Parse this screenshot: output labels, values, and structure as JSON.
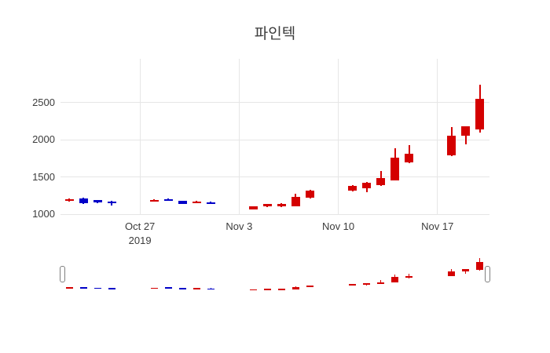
{
  "chart_data": {
    "type": "candlestick",
    "title": "파인텍",
    "legend": "none",
    "grid": "on",
    "colors": {
      "increasing": "#d40000",
      "decreasing": "#0000c8",
      "gridline": "#e6e6e6",
      "text": "#3c3c3c",
      "handle_border": "#7f7f7f",
      "background": "#ffffff"
    },
    "y_axis": {
      "range": [
        1000,
        3090
      ],
      "ticks": [
        {
          "value": 1000,
          "label": "1000"
        },
        {
          "value": 1500,
          "label": "1500"
        },
        {
          "value": 2000,
          "label": "2000"
        },
        {
          "value": 2500,
          "label": "2500"
        }
      ]
    },
    "x_axis": {
      "ticks": [
        {
          "day": 5,
          "label": "Oct 27",
          "sublabel": "2019"
        },
        {
          "day": 12,
          "label": "Nov 3",
          "sublabel": ""
        },
        {
          "day": 19,
          "label": "Nov 10",
          "sublabel": ""
        },
        {
          "day": 26,
          "label": "Nov 17",
          "sublabel": ""
        }
      ]
    },
    "rangeslider": {
      "enabled": true,
      "selected_range": "full"
    },
    "candles": [
      {
        "date": "2019-10-22",
        "d": 0,
        "open": 1175,
        "high": 1215,
        "low": 1170,
        "close": 1205
      },
      {
        "date": "2019-10-23",
        "d": 1,
        "open": 1215,
        "high": 1225,
        "low": 1140,
        "close": 1150
      },
      {
        "date": "2019-10-24",
        "d": 2,
        "open": 1185,
        "high": 1195,
        "low": 1150,
        "close": 1160
      },
      {
        "date": "2019-10-25",
        "d": 3,
        "open": 1170,
        "high": 1175,
        "low": 1120,
        "close": 1150
      },
      {
        "date": "2019-10-28",
        "d": 6,
        "open": 1170,
        "high": 1200,
        "low": 1165,
        "close": 1195
      },
      {
        "date": "2019-10-29",
        "d": 7,
        "open": 1205,
        "high": 1210,
        "low": 1175,
        "close": 1180
      },
      {
        "date": "2019-10-30",
        "d": 8,
        "open": 1175,
        "high": 1180,
        "low": 1135,
        "close": 1140
      },
      {
        "date": "2019-10-31",
        "d": 9,
        "open": 1150,
        "high": 1175,
        "low": 1145,
        "close": 1170
      },
      {
        "date": "2019-11-01",
        "d": 10,
        "open": 1160,
        "high": 1165,
        "low": 1135,
        "close": 1140
      },
      {
        "date": "2019-11-04",
        "d": 13,
        "open": 1065,
        "high": 1110,
        "low": 1060,
        "close": 1105
      },
      {
        "date": "2019-11-05",
        "d": 14,
        "open": 1105,
        "high": 1140,
        "low": 1100,
        "close": 1135
      },
      {
        "date": "2019-11-06",
        "d": 15,
        "open": 1105,
        "high": 1145,
        "low": 1095,
        "close": 1135
      },
      {
        "date": "2019-11-07",
        "d": 16,
        "open": 1110,
        "high": 1270,
        "low": 1105,
        "close": 1235
      },
      {
        "date": "2019-11-08",
        "d": 17,
        "open": 1220,
        "high": 1325,
        "low": 1210,
        "close": 1315
      },
      {
        "date": "2019-11-11",
        "d": 20,
        "open": 1315,
        "high": 1395,
        "low": 1305,
        "close": 1385
      },
      {
        "date": "2019-11-12",
        "d": 21,
        "open": 1350,
        "high": 1430,
        "low": 1295,
        "close": 1425
      },
      {
        "date": "2019-11-13",
        "d": 22,
        "open": 1390,
        "high": 1580,
        "low": 1385,
        "close": 1490
      },
      {
        "date": "2019-11-14",
        "d": 23,
        "open": 1455,
        "high": 1885,
        "low": 1450,
        "close": 1765
      },
      {
        "date": "2019-11-15",
        "d": 24,
        "open": 1700,
        "high": 1925,
        "low": 1690,
        "close": 1815
      },
      {
        "date": "2019-11-18",
        "d": 27,
        "open": 1790,
        "high": 2175,
        "low": 1785,
        "close": 2055
      },
      {
        "date": "2019-11-19",
        "d": 28,
        "open": 2055,
        "high": 2185,
        "low": 1935,
        "close": 2185
      },
      {
        "date": "2019-11-20",
        "d": 29,
        "open": 2135,
        "high": 2740,
        "low": 2100,
        "close": 2555
      }
    ]
  }
}
